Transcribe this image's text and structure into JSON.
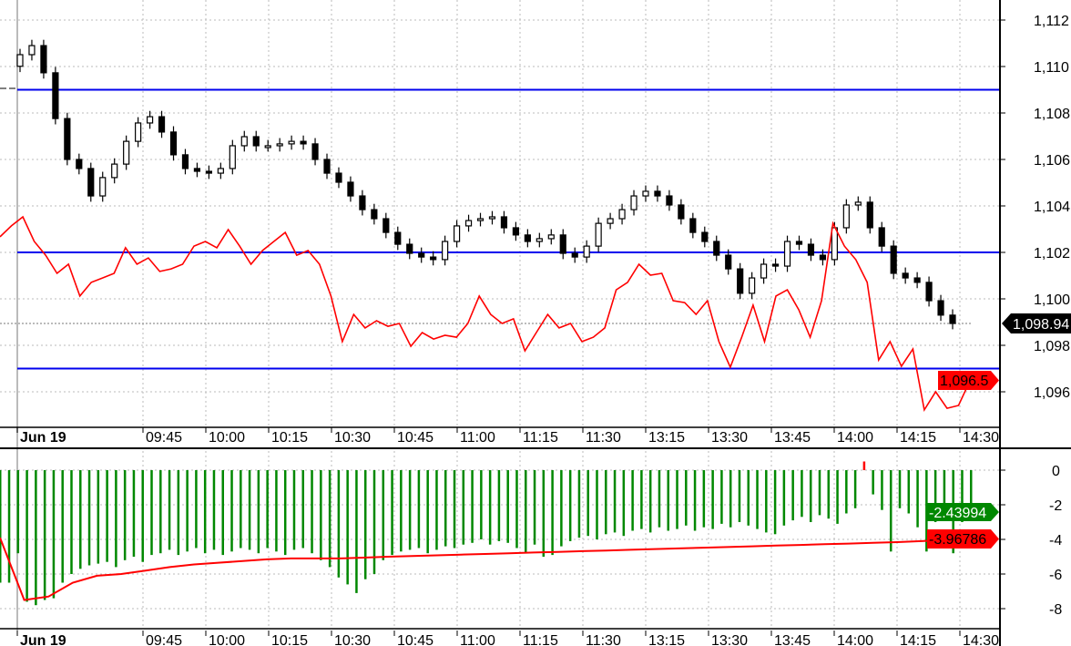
{
  "chart_data": [
    {
      "type": "candlestick",
      "pane": "price",
      "x_tick_labels": [
        "Jun 19",
        "09:45",
        "10:00",
        "10:15",
        "10:30",
        "10:45",
        "11:00",
        "11:15",
        "11:30",
        "13:15",
        "13:30",
        "13:45",
        "14:00",
        "14:15",
        "14:30"
      ],
      "y_tick_labels": [
        "1,112",
        "1,110",
        "1,108",
        "1,106",
        "1,104",
        "1,102",
        "1,100",
        "1,098",
        "1,096"
      ],
      "y_ticks": [
        1112,
        1110,
        1108,
        1106,
        1104,
        1102,
        1100,
        1098,
        1096
      ],
      "ylim": [
        1094.65,
        1112.86
      ],
      "grid": true,
      "closes": [
        1110.51,
        1110.9,
        1109.73,
        1107.76,
        1106.0,
        1105.61,
        1104.43,
        1105.22,
        1105.8,
        1106.78,
        1107.57,
        1107.84,
        1107.18,
        1106.2,
        1105.61,
        1105.49,
        1105.41,
        1105.61,
        1106.59,
        1106.98,
        1106.59,
        1106.59,
        1106.67,
        1106.78,
        1106.67,
        1106.0,
        1105.41,
        1105.02,
        1104.43,
        1103.84,
        1103.45,
        1102.86,
        1102.35,
        1101.96,
        1101.8,
        1101.69,
        1102.47,
        1103.14,
        1103.37,
        1103.45,
        1103.53,
        1103.06,
        1102.75,
        1102.47,
        1102.59,
        1102.75,
        1101.96,
        1101.8,
        1102.27,
        1103.25,
        1103.45,
        1103.84,
        1104.43,
        1104.63,
        1104.43,
        1104.04,
        1103.45,
        1102.86,
        1102.47,
        1101.88,
        1101.29,
        1100.24,
        1100.9,
        1101.49,
        1101.41,
        1102.47,
        1102.35,
        1101.88,
        1101.69,
        1103.06,
        1104.04,
        1104.16,
        1103.06,
        1102.27,
        1101.1,
        1100.9,
        1100.71,
        1099.92,
        1099.3,
        1098.94
      ],
      "horizontal_lines": [
        1109.0,
        1102.0,
        1097.0
      ],
      "horizontal_line_color": "#0000ee",
      "indicator_line": {
        "color": "#ff0000",
        "values": [
          1102.67,
          1103.14,
          1103.53,
          1102.47,
          1101.88,
          1101.1,
          1101.49,
          1100.12,
          1100.71,
          1100.9,
          1101.1,
          1102.2,
          1101.49,
          1101.76,
          1101.18,
          1101.29,
          1101.49,
          1102.27,
          1102.47,
          1102.2,
          1102.98,
          1102.27,
          1101.49,
          1102.08,
          1102.47,
          1102.86,
          1101.88,
          1102.08,
          1101.49,
          1100.12,
          1098.16,
          1099.33,
          1098.75,
          1099.06,
          1098.82,
          1098.94,
          1097.96,
          1098.55,
          1098.27,
          1098.43,
          1098.35,
          1098.94,
          1100.12,
          1099.33,
          1098.94,
          1099.14,
          1097.76,
          1098.55,
          1099.33,
          1098.75,
          1098.94,
          1098.16,
          1098.35,
          1098.75,
          1100.39,
          1100.71,
          1101.49,
          1101.02,
          1101.1,
          1099.92,
          1099.84,
          1099.33,
          1099.92,
          1098.16,
          1097.06,
          1098.35,
          1099.73,
          1098.16,
          1100.12,
          1100.39,
          1099.53,
          1098.35,
          1099.92,
          1103.25,
          1102.27,
          1101.69,
          1100.71,
          1097.37,
          1098.16,
          1097.1,
          1097.84,
          1095.22,
          1096.0,
          1095.29,
          1095.41,
          1096.47
        ]
      },
      "last_price_label": "1,098.94",
      "last_price_value": 1098.94,
      "indicator_label": "1,096.5",
      "indicator_label_value": 1096.5
    },
    {
      "type": "bar+line",
      "pane": "oscillator",
      "x_tick_labels": [
        "Jun 19",
        "09:45",
        "10:00",
        "10:15",
        "10:30",
        "10:45",
        "11:00",
        "11:15",
        "11:30",
        "13:15",
        "13:30",
        "13:45",
        "14:00",
        "14:15",
        "14:30"
      ],
      "y_tick_labels": [
        "0",
        "-2",
        "-4",
        "-6",
        "-8"
      ],
      "y_ticks": [
        0,
        -2,
        -4,
        -6,
        -8
      ],
      "ylim": [
        -9.1,
        1.1
      ],
      "grid": true,
      "bars": [
        -6.5,
        -6.5,
        -4.8,
        -7.6,
        -7.8,
        -7.5,
        -7.4,
        -6.5,
        -6.0,
        -5.7,
        -5.5,
        -5.4,
        -5.3,
        -5.6,
        -5.2,
        -5.0,
        -5.3,
        -4.9,
        -4.8,
        -4.6,
        -4.9,
        -4.7,
        -4.5,
        -4.8,
        -4.6,
        -4.9,
        -4.7,
        -4.5,
        -4.6,
        -4.8,
        -4.5,
        -4.7,
        -4.9,
        -4.6,
        -4.5,
        -4.8,
        -5.2,
        -5.6,
        -6.2,
        -6.6,
        -7.1,
        -6.3,
        -6.0,
        -5.2,
        -4.9,
        -4.7,
        -4.6,
        -4.5,
        -4.8,
        -4.6,
        -4.4,
        -4.5,
        -4.3,
        -4.2,
        -4.0,
        -4.3,
        -4.1,
        -4.2,
        -4.5,
        -4.8,
        -4.3,
        -5.0,
        -4.9,
        -4.4,
        -4.1,
        -3.9,
        -3.8,
        -4.0,
        -3.7,
        -3.6,
        -3.8,
        -3.5,
        -3.4,
        -3.6,
        -3.3,
        -3.5,
        -3.4,
        -3.2,
        -3.5,
        -3.3,
        -3.4,
        -3.1,
        -3.3,
        -3.0,
        -3.2,
        -3.4,
        -3.6,
        -3.7,
        -3.2,
        -2.9,
        -2.7,
        -3.0,
        -2.6,
        -2.8,
        -3.1,
        -2.5,
        -2.2,
        0.5,
        -1.4,
        -2.3,
        -4.7,
        -2.2,
        -2.5,
        -3.3,
        -4.7,
        -3.0,
        -2.6,
        -4.8,
        -3.0,
        -2.4
      ],
      "bar_color_negative": "#008800",
      "bar_color_positive": "#ff0000",
      "line": {
        "color": "#ff0000",
        "values": [
          -3.9,
          -7.5,
          -7.3,
          -6.5,
          -6.1,
          -6.0,
          -5.8,
          -5.6,
          -5.45,
          -5.35,
          -5.25,
          -5.15,
          -5.1,
          -5.1,
          -5.1,
          -5.05,
          -5.0,
          -4.96,
          -4.92,
          -4.88,
          -4.84,
          -4.8,
          -4.76,
          -4.72,
          -4.68,
          -4.64,
          -4.6,
          -4.56,
          -4.52,
          -4.48,
          -4.44,
          -4.4,
          -4.36,
          -4.32,
          -4.28,
          -4.24,
          -4.2,
          -4.16,
          -4.1,
          -4.04,
          -3.97
        ]
      },
      "bar_last_label": "-2.43994",
      "bar_last_value": -2.43994,
      "line_last_label": "-3.96786",
      "line_last_value": -3.96786
    }
  ]
}
